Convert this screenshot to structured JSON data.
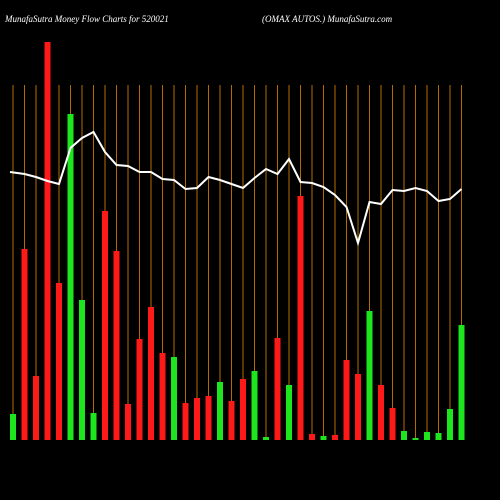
{
  "chart_data": {
    "type": "bar",
    "title": "MunafaSutra  Money Flow  Charts for 520021",
    "subtitle": "(OMAX  AUTOS.) MunafaSutra.com",
    "categories": [
      null,
      null,
      null,
      null,
      null,
      null,
      null,
      null,
      null,
      null,
      null,
      null,
      null,
      null,
      null,
      null,
      null,
      null,
      null,
      null,
      null,
      null,
      null,
      null,
      null,
      null,
      null,
      null,
      null,
      null,
      null,
      null,
      null,
      null,
      null,
      null,
      null,
      null,
      null,
      null
    ],
    "values": [
      26,
      191,
      64,
      398,
      157,
      326,
      140,
      27,
      229,
      189,
      36,
      101,
      133,
      87,
      83,
      37,
      42,
      44,
      58,
      39,
      61,
      69,
      3,
      102,
      55,
      244,
      6,
      4,
      5,
      80,
      66,
      129,
      55,
      32,
      9,
      2,
      8,
      7,
      31,
      115
    ],
    "colors": [
      "#1ee61e",
      "#ff1a1a",
      "#ff1a1a",
      "#ff1a1a",
      "#ff1a1a",
      "#1ee61e",
      "#1ee61e",
      "#1ee61e",
      "#ff1a1a",
      "#ff1a1a",
      "#ff1a1a",
      "#ff1a1a",
      "#ff1a1a",
      "#ff1a1a",
      "#1ee61e",
      "#ff1a1a",
      "#ff1a1a",
      "#ff1a1a",
      "#1ee61e",
      "#ff1a1a",
      "#ff1a1a",
      "#1ee61e",
      "#1ee61e",
      "#ff1a1a",
      "#1ee61e",
      "#ff1a1a",
      "#ff1a1a",
      "#1ee61e",
      "#ff1a1a",
      "#ff1a1a",
      "#ff1a1a",
      "#1ee61e",
      "#ff1a1a",
      "#ff1a1a",
      "#1ee61e",
      "#1ee61e",
      "#1ee61e",
      "#1ee61e",
      "#1ee61e",
      "#1ee61e"
    ],
    "line": {
      "color": "#ffffff",
      "values": [
        268,
        266,
        263,
        259,
        256,
        292,
        302,
        308,
        288,
        275,
        274,
        268,
        268,
        261,
        260,
        251,
        252,
        263,
        260,
        256,
        252,
        262,
        271,
        266,
        281,
        258,
        257,
        253,
        245,
        233,
        197,
        238,
        236,
        250,
        249,
        252,
        249,
        239,
        241,
        251
      ]
    },
    "grid_color": "#b36b00",
    "ylim": [
      0,
      400
    ]
  }
}
